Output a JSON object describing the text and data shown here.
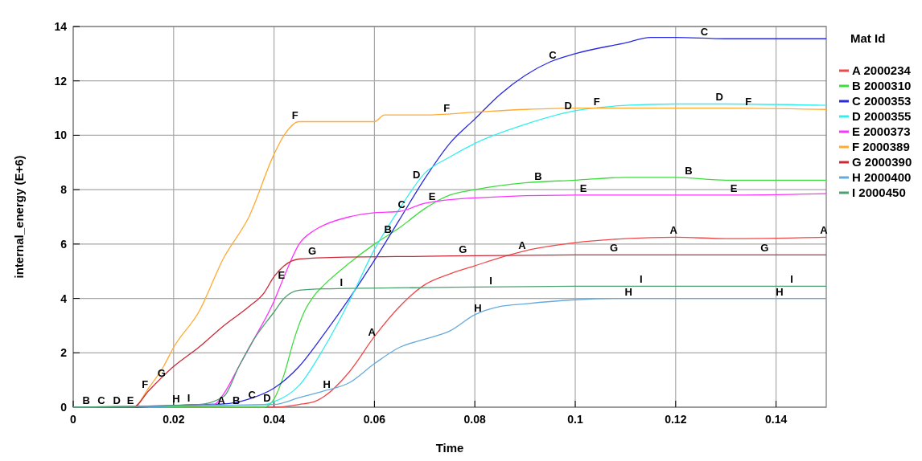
{
  "chart_data": {
    "type": "line",
    "xlabel": "Time",
    "ylabel": "internal_energy (E+6)",
    "legend_title": "Mat Id",
    "legend": "right",
    "grid": true,
    "marker": "none",
    "line_style": "solid",
    "xlim": [
      0,
      0.15
    ],
    "xticks": [
      0,
      0.02,
      0.04,
      0.06,
      0.08,
      0.1,
      0.12,
      0.14
    ],
    "ylim": [
      0,
      14
    ],
    "yticks": [
      0,
      2,
      4,
      6,
      8,
      10,
      12,
      14
    ],
    "series": [
      {
        "name": "A 2000234",
        "color": "#f04848",
        "x": [
          0,
          0.04,
          0.045,
          0.048,
          0.05,
          0.055,
          0.06,
          0.065,
          0.07,
          0.075,
          0.08,
          0.085,
          0.09,
          0.1,
          0.11,
          0.12,
          0.13,
          0.15
        ],
        "values": [
          0,
          0,
          0.1,
          0.2,
          0.4,
          1.3,
          2.6,
          3.7,
          4.5,
          4.9,
          5.2,
          5.5,
          5.75,
          6.05,
          6.2,
          6.25,
          6.2,
          6.25
        ]
      },
      {
        "name": "B 2000310",
        "color": "#3ddd3d",
        "x": [
          0,
          0.038,
          0.04,
          0.042,
          0.044,
          0.046,
          0.048,
          0.05,
          0.055,
          0.06,
          0.065,
          0.07,
          0.075,
          0.08,
          0.09,
          0.1,
          0.11,
          0.12,
          0.13,
          0.15
        ],
        "values": [
          0,
          0,
          0.3,
          1.2,
          2.5,
          3.5,
          4.1,
          4.5,
          5.3,
          6.0,
          6.6,
          7.3,
          7.8,
          8.0,
          8.25,
          8.35,
          8.45,
          8.45,
          8.35,
          8.35
        ]
      },
      {
        "name": "C 2000353",
        "color": "#2a2ae0",
        "x": [
          0,
          0.012,
          0.025,
          0.03,
          0.035,
          0.04,
          0.045,
          0.05,
          0.055,
          0.06,
          0.065,
          0.07,
          0.075,
          0.08,
          0.085,
          0.09,
          0.095,
          0.1,
          0.11,
          0.115,
          0.12,
          0.13,
          0.15
        ],
        "values": [
          0,
          0,
          0.1,
          0.12,
          0.3,
          0.7,
          1.5,
          2.7,
          4.0,
          5.4,
          6.9,
          8.4,
          9.7,
          10.6,
          11.5,
          12.2,
          12.7,
          13.0,
          13.4,
          13.6,
          13.6,
          13.55,
          13.55
        ]
      },
      {
        "name": "D 2000355",
        "color": "#33eeee",
        "x": [
          0,
          0.038,
          0.04,
          0.045,
          0.05,
          0.055,
          0.06,
          0.065,
          0.07,
          0.075,
          0.08,
          0.09,
          0.1,
          0.11,
          0.12,
          0.13,
          0.15
        ],
        "values": [
          0,
          0.1,
          0.2,
          0.8,
          2.2,
          3.9,
          5.8,
          7.3,
          8.6,
          9.2,
          9.7,
          10.4,
          10.9,
          11.1,
          11.15,
          11.15,
          11.1
        ]
      },
      {
        "name": "E 2000373",
        "color": "#ff33ff",
        "x": [
          0,
          0.028,
          0.03,
          0.033,
          0.036,
          0.04,
          0.042,
          0.045,
          0.048,
          0.05,
          0.055,
          0.06,
          0.065,
          0.07,
          0.08,
          0.1,
          0.13,
          0.15
        ],
        "values": [
          0,
          0.1,
          0.5,
          1.5,
          2.5,
          3.9,
          4.8,
          6.0,
          6.5,
          6.7,
          7.0,
          7.15,
          7.2,
          7.5,
          7.7,
          7.8,
          7.8,
          7.85
        ]
      },
      {
        "name": "F 2000389",
        "color": "#ffaa33",
        "x": [
          0,
          0.012,
          0.015,
          0.018,
          0.02,
          0.025,
          0.03,
          0.035,
          0.04,
          0.042,
          0.045,
          0.05,
          0.06,
          0.062,
          0.07,
          0.08,
          0.09,
          0.1,
          0.13,
          0.15
        ],
        "values": [
          0,
          0,
          0.7,
          1.5,
          2.2,
          3.5,
          5.5,
          7.0,
          9.3,
          10.0,
          10.5,
          10.5,
          10.5,
          10.75,
          10.75,
          10.85,
          10.95,
          11.0,
          11.0,
          10.95
        ]
      },
      {
        "name": "G 2000390",
        "color": "#cc2838",
        "x": [
          0,
          0.012,
          0.015,
          0.02,
          0.025,
          0.03,
          0.035,
          0.038,
          0.04,
          0.042,
          0.045,
          0.05,
          0.07,
          0.1,
          0.15
        ],
        "values": [
          0,
          0,
          0.6,
          1.5,
          2.2,
          3.0,
          3.7,
          4.2,
          4.8,
          5.2,
          5.45,
          5.5,
          5.55,
          5.6,
          5.6
        ]
      },
      {
        "name": "H 2000400",
        "color": "#66aadd",
        "x": [
          0,
          0.02,
          0.04,
          0.045,
          0.05,
          0.055,
          0.06,
          0.065,
          0.07,
          0.075,
          0.08,
          0.085,
          0.09,
          0.1,
          0.11,
          0.15
        ],
        "values": [
          0,
          0.05,
          0.1,
          0.35,
          0.6,
          0.9,
          1.6,
          2.2,
          2.5,
          2.8,
          3.4,
          3.7,
          3.8,
          3.95,
          4.0,
          4.0
        ]
      },
      {
        "name": "I 2000450",
        "color": "#4aa070",
        "x": [
          0,
          0.025,
          0.03,
          0.033,
          0.036,
          0.04,
          0.042,
          0.045,
          0.05,
          0.07,
          0.1,
          0.15
        ],
        "values": [
          0,
          0.1,
          0.4,
          1.5,
          2.5,
          3.5,
          4.0,
          4.3,
          4.35,
          4.4,
          4.45,
          4.45
        ]
      }
    ],
    "annotations": [
      {
        "text": "B",
        "x": 0.0026,
        "y": 0
      },
      {
        "text": "C",
        "x": 0.0056,
        "y": 0
      },
      {
        "text": "D",
        "x": 0.0087,
        "y": 0
      },
      {
        "text": "E",
        "x": 0.0114,
        "y": 0
      },
      {
        "text": "H",
        "x": 0.0205,
        "y": 0.05
      },
      {
        "text": "I",
        "x": 0.023,
        "y": 0.1
      },
      {
        "text": "A",
        "x": 0.0295,
        "y": 0
      },
      {
        "text": "B",
        "x": 0.0325,
        "y": 0
      },
      {
        "text": "C",
        "x": 0.0356,
        "y": 0.2
      },
      {
        "text": "D",
        "x": 0.0386,
        "y": 0.1
      },
      {
        "text": "F",
        "x": 0.0143,
        "y": 0.6
      },
      {
        "text": "G",
        "x": 0.0176,
        "y": 1.0
      },
      {
        "text": "E",
        "x": 0.0415,
        "y": 4.6
      },
      {
        "text": "G",
        "x": 0.0476,
        "y": 5.5
      },
      {
        "text": "I",
        "x": 0.0534,
        "y": 4.35
      },
      {
        "text": "H",
        "x": 0.0505,
        "y": 0.6
      },
      {
        "text": "A",
        "x": 0.0595,
        "y": 2.5
      },
      {
        "text": "B",
        "x": 0.0627,
        "y": 6.3
      },
      {
        "text": "C",
        "x": 0.0654,
        "y": 7.2
      },
      {
        "text": "D",
        "x": 0.0684,
        "y": 8.3
      },
      {
        "text": "E",
        "x": 0.0715,
        "y": 7.5
      },
      {
        "text": "F",
        "x": 0.0442,
        "y": 10.5
      },
      {
        "text": "F",
        "x": 0.0744,
        "y": 10.75
      },
      {
        "text": "C",
        "x": 0.0955,
        "y": 12.7
      },
      {
        "text": "D",
        "x": 0.0986,
        "y": 10.85
      },
      {
        "text": "F",
        "x": 0.1043,
        "y": 11.0
      },
      {
        "text": "C",
        "x": 0.1257,
        "y": 13.55
      },
      {
        "text": "D",
        "x": 0.1287,
        "y": 11.15
      },
      {
        "text": "F",
        "x": 0.1345,
        "y": 11.0
      },
      {
        "text": "B",
        "x": 0.0926,
        "y": 8.25
      },
      {
        "text": "B",
        "x": 0.1226,
        "y": 8.45
      },
      {
        "text": "E",
        "x": 0.1016,
        "y": 7.8
      },
      {
        "text": "E",
        "x": 0.1316,
        "y": 7.8
      },
      {
        "text": "A",
        "x": 0.0894,
        "y": 5.7
      },
      {
        "text": "A",
        "x": 0.1196,
        "y": 6.25
      },
      {
        "text": "A",
        "x": 0.1495,
        "y": 6.25
      },
      {
        "text": "G",
        "x": 0.0776,
        "y": 5.55
      },
      {
        "text": "G",
        "x": 0.1077,
        "y": 5.6
      },
      {
        "text": "G",
        "x": 0.1377,
        "y": 5.6
      },
      {
        "text": "I",
        "x": 0.0832,
        "y": 4.4
      },
      {
        "text": "I",
        "x": 0.1131,
        "y": 4.45
      },
      {
        "text": "I",
        "x": 0.1431,
        "y": 4.45
      },
      {
        "text": "H",
        "x": 0.0806,
        "y": 3.4
      },
      {
        "text": "H",
        "x": 0.1106,
        "y": 4.0
      },
      {
        "text": "H",
        "x": 0.1407,
        "y": 4.0
      }
    ]
  }
}
